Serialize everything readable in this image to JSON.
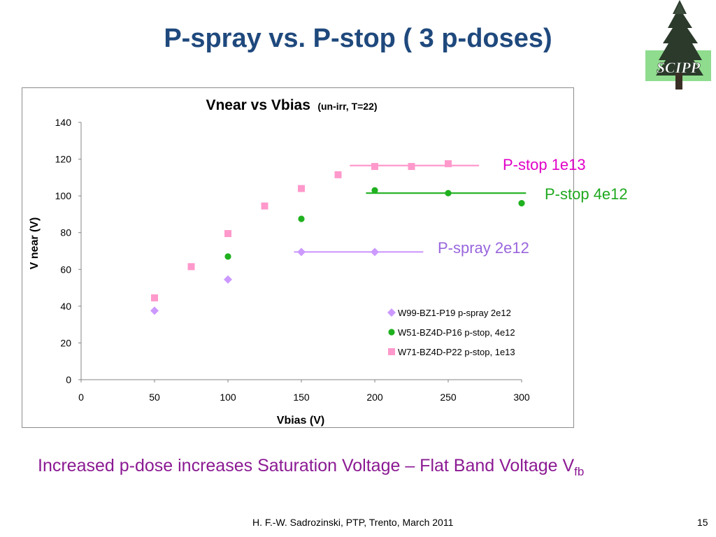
{
  "slide": {
    "title": "P-spray vs. P-stop ( 3 p-doses)",
    "logo_text": "SCIPP",
    "caption": "Increased p-dose increases Saturation Voltage – Flat Band Voltage V",
    "caption_subscript": "fb",
    "footer": "H. F.-W.  Sadrozinski, PTP,  Trento, March 2011",
    "page_number": "15"
  },
  "colors": {
    "title": "#1f497d",
    "caption": "#8b1a93",
    "p_spray": "#cc99ff",
    "p_stop_4e12": "#1fb11f",
    "p_stop_1e13": "#ff99cc",
    "ann_p_stop_1e13": "#e000c8",
    "ann_p_stop_4e12": "#1fa81f",
    "ann_p_spray": "#9966dd"
  },
  "chart_data": {
    "type": "scatter",
    "title": "Vnear vs Vbias",
    "title_suffix": "(un-irr, T=22)",
    "xlabel": "Vbias (V)",
    "ylabel": "V near (V)",
    "xlim": [
      0,
      300
    ],
    "ylim": [
      0,
      140
    ],
    "xticks": [
      0,
      50,
      100,
      150,
      200,
      250,
      300
    ],
    "yticks": [
      0,
      20,
      40,
      60,
      80,
      100,
      120,
      140
    ],
    "grid": false,
    "legend_position": "bottom-right",
    "series": [
      {
        "name": "W99-BZ1-P19 p-spray 2e12",
        "marker": "diamond",
        "color": "#cc99ff",
        "points": [
          [
            50,
            37.5
          ],
          [
            100,
            54.5
          ],
          [
            150,
            69.5
          ],
          [
            200,
            69.5
          ]
        ]
      },
      {
        "name": "W51-BZ4D-P16 p-stop, 4e12",
        "marker": "circle",
        "color": "#1fb11f",
        "points": [
          [
            100,
            67
          ],
          [
            150,
            87.5
          ],
          [
            200,
            103
          ],
          [
            250,
            101.5
          ],
          [
            300,
            96
          ]
        ]
      },
      {
        "name": "W71-BZ4D-P22 p-stop, 1e13",
        "marker": "square",
        "color": "#ff99cc",
        "points": [
          [
            50,
            44.5
          ],
          [
            75,
            61.5
          ],
          [
            100,
            79.5
          ],
          [
            125,
            94.5
          ],
          [
            150,
            104
          ],
          [
            175,
            111.5
          ],
          [
            200,
            116
          ],
          [
            225,
            116
          ],
          [
            250,
            117.5
          ]
        ]
      }
    ],
    "annotations": [
      {
        "text": "P-stop 1e13",
        "color": "#e000c8"
      },
      {
        "text": "P-stop 4e12",
        "color": "#1fa81f"
      },
      {
        "text": "P-spray 2e12",
        "color": "#9966dd"
      }
    ],
    "plateau_lines": [
      {
        "series": 2,
        "x_from": 183,
        "x_to": 271,
        "y": 116.5,
        "color": "#ff99cc"
      },
      {
        "series": 1,
        "x_from": 194,
        "x_to": 303,
        "y": 101.5,
        "color": "#1fb11f"
      },
      {
        "series": 0,
        "x_from": 145,
        "x_to": 233,
        "y": 69.5,
        "color": "#cc99ff"
      }
    ]
  }
}
